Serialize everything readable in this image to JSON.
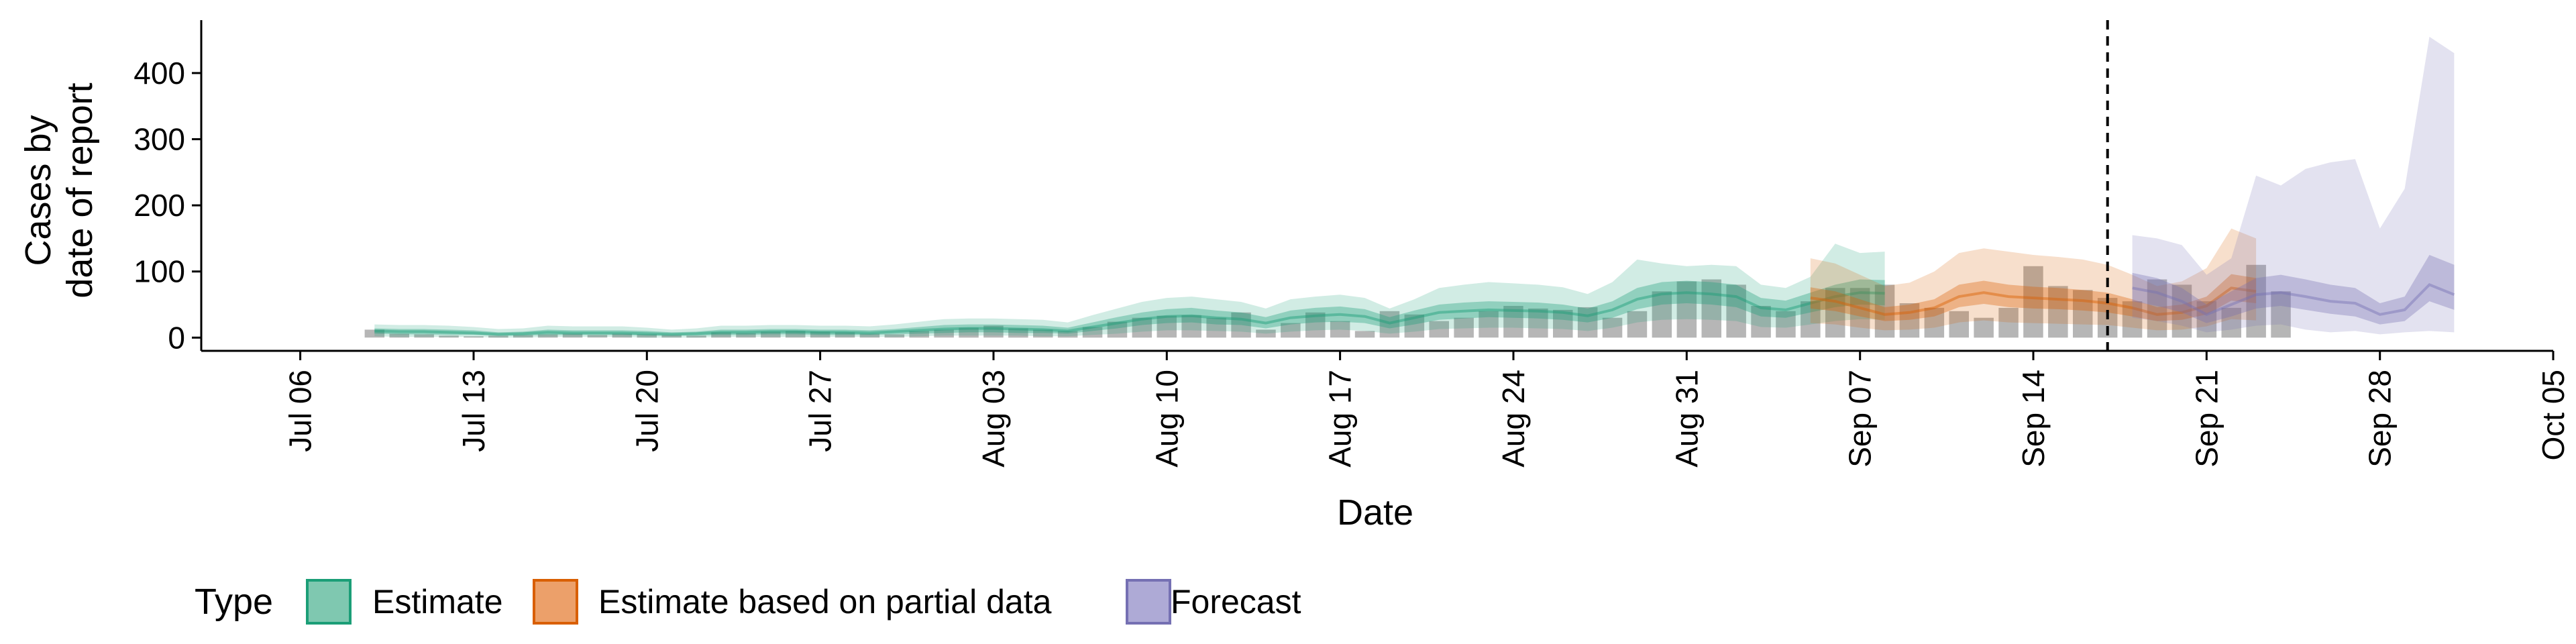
{
  "chart_data": {
    "type": "area",
    "title": "",
    "xlabel": "Date",
    "ylabel_lines": [
      "Cases by",
      "date of report"
    ],
    "ylim": [
      -20,
      480
    ],
    "yticks": [
      0,
      100,
      200,
      300,
      400
    ],
    "xlim": [
      "2020-07-02",
      "2020-10-05"
    ],
    "x_tick_labels": [
      "Jul 06",
      "Jul 13",
      "Jul 20",
      "Jul 27",
      "Aug 03",
      "Aug 10",
      "Aug 17",
      "Aug 24",
      "Aug 31",
      "Sep 07",
      "Sep 14",
      "Sep 21",
      "Sep 28",
      "Oct 05"
    ],
    "x_tick_dates": [
      "2020-07-06",
      "2020-07-13",
      "2020-07-20",
      "2020-07-27",
      "2020-08-03",
      "2020-08-10",
      "2020-08-17",
      "2020-08-24",
      "2020-08-31",
      "2020-09-07",
      "2020-09-14",
      "2020-09-21",
      "2020-09-28",
      "2020-10-05"
    ],
    "vline_date": "2020-09-17",
    "legend": {
      "title": "Type",
      "position": "bottom",
      "entries": [
        "Estimate",
        "Estimate based on partial data",
        "Forecast"
      ]
    },
    "colors": {
      "Estimate": "#1b9e77",
      "Estimate based on partial data": "#d95f02",
      "Forecast": "#7570b3",
      "observed": "#a9a9a9"
    },
    "observed_cases": {
      "start": "2020-07-09",
      "values": [
        12,
        6,
        5,
        3,
        2,
        3,
        4,
        5,
        6,
        4,
        6,
        5,
        4,
        3,
        8,
        7,
        9,
        10,
        9,
        8,
        6,
        5,
        10,
        12,
        15,
        18,
        14,
        12,
        10,
        16,
        24,
        30,
        33,
        34,
        30,
        38,
        12,
        22,
        38,
        25,
        10,
        40,
        35,
        25,
        30,
        40,
        48,
        44,
        42,
        46,
        30,
        40,
        70,
        85,
        88,
        80,
        48,
        40,
        55,
        75,
        75,
        80,
        52,
        45,
        40,
        30,
        45,
        108,
        78,
        72,
        60,
        55,
        88,
        80,
        55,
        45,
        110,
        70
      ]
    },
    "series": [
      {
        "name": "Estimate",
        "start": "2020-07-09",
        "median": [
          10,
          9,
          9,
          8,
          7,
          5,
          6,
          8,
          7,
          7,
          7,
          6,
          5,
          6,
          8,
          8,
          9,
          9,
          8,
          8,
          7,
          9,
          11,
          13,
          14,
          14,
          13,
          12,
          10,
          16,
          22,
          28,
          32,
          33,
          30,
          28,
          22,
          30,
          33,
          35,
          32,
          22,
          30,
          38,
          40,
          42,
          41,
          40,
          38,
          33,
          42,
          58,
          66,
          68,
          66,
          62,
          45,
          42,
          52,
          62,
          68,
          67
        ],
        "lower50": [
          6,
          5,
          5,
          4,
          4,
          3,
          3,
          4,
          4,
          4,
          4,
          3,
          3,
          3,
          4,
          4,
          5,
          5,
          4,
          4,
          4,
          5,
          6,
          7,
          8,
          8,
          7,
          7,
          6,
          10,
          14,
          19,
          22,
          23,
          20,
          19,
          14,
          20,
          23,
          24,
          22,
          14,
          20,
          27,
          29,
          31,
          30,
          29,
          27,
          23,
          30,
          43,
          50,
          52,
          50,
          46,
          32,
          30,
          38,
          46,
          50,
          49
        ],
        "upper50": [
          14,
          13,
          13,
          12,
          11,
          8,
          9,
          12,
          11,
          11,
          11,
          10,
          8,
          9,
          12,
          12,
          13,
          13,
          12,
          12,
          11,
          13,
          16,
          19,
          20,
          20,
          19,
          18,
          15,
          23,
          31,
          38,
          43,
          45,
          41,
          38,
          31,
          41,
          45,
          47,
          43,
          31,
          41,
          50,
          53,
          55,
          54,
          53,
          50,
          44,
          55,
          75,
          84,
          86,
          84,
          80,
          60,
          56,
          68,
          80,
          88,
          87
        ],
        "lower90": [
          2,
          1,
          1,
          1,
          1,
          0,
          0,
          1,
          1,
          1,
          1,
          0,
          0,
          0,
          1,
          1,
          1,
          1,
          1,
          1,
          1,
          1,
          2,
          3,
          3,
          3,
          3,
          2,
          2,
          4,
          6,
          9,
          11,
          11,
          10,
          9,
          6,
          9,
          11,
          12,
          10,
          6,
          9,
          13,
          14,
          15,
          15,
          14,
          13,
          10,
          15,
          23,
          27,
          28,
          27,
          25,
          16,
          15,
          20,
          25,
          28,
          27
        ],
        "upper90": [
          20,
          19,
          19,
          18,
          16,
          13,
          14,
          18,
          17,
          17,
          17,
          15,
          12,
          14,
          18,
          18,
          19,
          19,
          18,
          18,
          17,
          20,
          24,
          28,
          29,
          29,
          28,
          27,
          23,
          34,
          44,
          54,
          60,
          62,
          58,
          54,
          44,
          58,
          62,
          65,
          60,
          44,
          58,
          75,
          80,
          84,
          82,
          80,
          76,
          66,
          84,
          118,
          112,
          108,
          110,
          108,
          80,
          75,
          92,
          142,
          128,
          130
        ]
      },
      {
        "name": "Estimate based on partial data",
        "start": "2020-09-05",
        "median": [
          60,
          55,
          45,
          35,
          38,
          45,
          62,
          68,
          62,
          60,
          58,
          56,
          52,
          45,
          35,
          38,
          48,
          75,
          70
        ],
        "lower50": [
          44,
          40,
          32,
          25,
          27,
          32,
          46,
          51,
          46,
          44,
          43,
          41,
          38,
          32,
          25,
          27,
          35,
          56,
          52
        ],
        "upper50": [
          76,
          70,
          58,
          46,
          50,
          58,
          80,
          86,
          80,
          77,
          75,
          72,
          68,
          58,
          46,
          50,
          62,
          96,
          90
        ],
        "lower90": [
          22,
          20,
          15,
          11,
          12,
          15,
          23,
          26,
          23,
          22,
          21,
          20,
          19,
          15,
          11,
          12,
          17,
          28,
          26
        ],
        "upper90": [
          120,
          112,
          95,
          78,
          83,
          100,
          128,
          135,
          130,
          125,
          122,
          118,
          110,
          95,
          78,
          85,
          105,
          165,
          150
        ]
      },
      {
        "name": "Forecast",
        "start": "2020-09-18",
        "median": [
          75,
          68,
          55,
          35,
          50,
          65,
          68,
          62,
          55,
          52,
          35,
          42,
          80,
          65
        ],
        "lower50": [
          55,
          48,
          38,
          22,
          32,
          44,
          48,
          42,
          36,
          32,
          20,
          25,
          55,
          42
        ],
        "upper50": [
          98,
          90,
          75,
          50,
          70,
          90,
          95,
          88,
          80,
          75,
          52,
          62,
          125,
          110
        ],
        "lower90": [
          30,
          25,
          18,
          8,
          12,
          18,
          20,
          12,
          8,
          10,
          5,
          8,
          10,
          8
        ],
        "upper90": [
          155,
          150,
          140,
          95,
          120,
          245,
          230,
          255,
          265,
          270,
          165,
          225,
          455,
          430
        ]
      }
    ]
  }
}
